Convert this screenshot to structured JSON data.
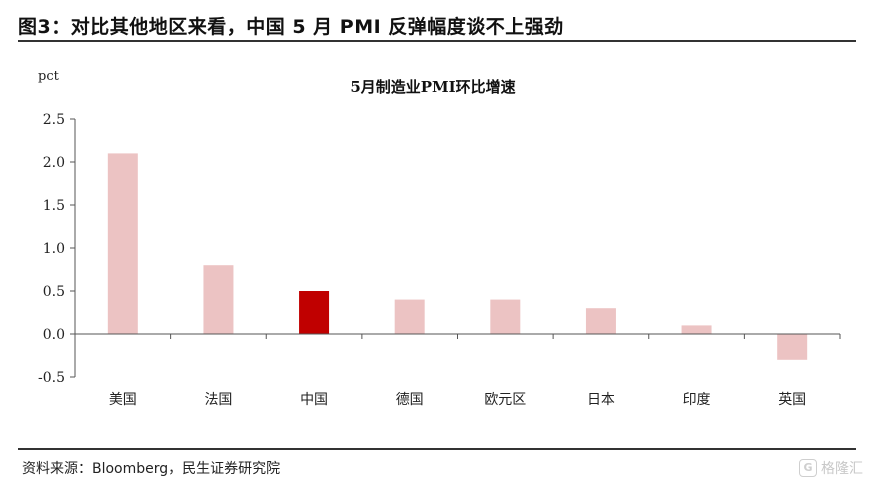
{
  "figure": {
    "title": "图3：对比其他地区来看，中国 5 月 PMI 反弹幅度谈不上强劲",
    "source": "资料来源：Bloomberg，民生证券研究院",
    "watermark": "格隆汇",
    "watermark_icon": "G"
  },
  "chart_data": {
    "type": "bar",
    "title": "5月制造业PMI环比增速",
    "ylabel": "pct",
    "xlabel": "",
    "categories": [
      "美国",
      "法国",
      "中国",
      "德国",
      "欧元区",
      "日本",
      "印度",
      "英国"
    ],
    "values": [
      2.1,
      0.8,
      0.5,
      0.4,
      0.4,
      0.3,
      0.1,
      -0.3
    ],
    "ylim": [
      -0.5,
      2.5
    ],
    "yticks": [
      -0.5,
      0.0,
      0.5,
      1.0,
      1.5,
      2.0,
      2.5
    ],
    "ytick_labels": [
      "-0.5",
      "0.0",
      "0.5",
      "1.0",
      "1.5",
      "2.0",
      "2.5"
    ],
    "grid": false,
    "bar_color": "#ECC3C3",
    "highlight_color": "#C00000",
    "highlight_category": "中国"
  }
}
